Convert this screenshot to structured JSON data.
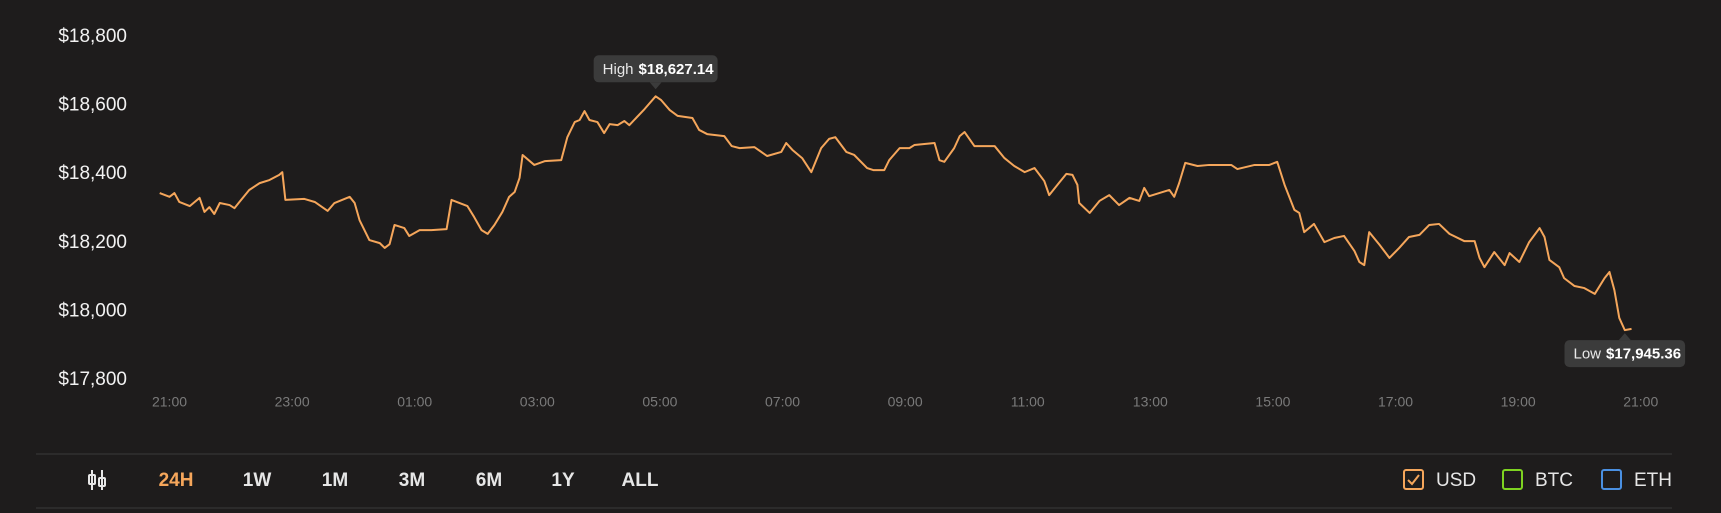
{
  "chart_data": {
    "type": "line",
    "color": "#f5a65b",
    "xlim": [
      -0.4,
      24.2
    ],
    "ylim": [
      17800,
      18800
    ],
    "xticks": [
      {
        "value": 0,
        "label": "21:00"
      },
      {
        "value": 2,
        "label": "23:00"
      },
      {
        "value": 4,
        "label": "01:00"
      },
      {
        "value": 6,
        "label": "03:00"
      },
      {
        "value": 8,
        "label": "05:00"
      },
      {
        "value": 10,
        "label": "07:00"
      },
      {
        "value": 12,
        "label": "09:00"
      },
      {
        "value": 14,
        "label": "11:00"
      },
      {
        "value": 16,
        "label": "13:00"
      },
      {
        "value": 18,
        "label": "15:00"
      },
      {
        "value": 20,
        "label": "17:00"
      },
      {
        "value": 22,
        "label": "19:00"
      },
      {
        "value": 24,
        "label": "21:00"
      }
    ],
    "yticks": [
      {
        "value": 18800,
        "label": "$18,800"
      },
      {
        "value": 18600,
        "label": "$18,600"
      },
      {
        "value": 18400,
        "label": "$18,400"
      },
      {
        "value": 18200,
        "label": "$18,200"
      },
      {
        "value": 18000,
        "label": "$18,000"
      },
      {
        "value": 17800,
        "label": "$17,800"
      }
    ],
    "x": [
      -0.16,
      0,
      0.08,
      0.16,
      0.33,
      0.49,
      0.57,
      0.65,
      0.73,
      0.82,
      0.98,
      1.06,
      1.14,
      1.3,
      1.47,
      1.63,
      1.79,
      1.84,
      1.89,
      2.2,
      2.37,
      2.58,
      2.69,
      2.94,
      3.02,
      3.1,
      3.26,
      3.43,
      3.51,
      3.59,
      3.67,
      3.83,
      3.91,
      4.08,
      4.27,
      4.52,
      4.6,
      4.86,
      4.97,
      5.09,
      5.19,
      5.3,
      5.43,
      5.54,
      5.63,
      5.71,
      5.76,
      5.95,
      6.12,
      6.39,
      6.49,
      6.61,
      6.69,
      6.77,
      6.85,
      6.98,
      7.09,
      7.18,
      7.31,
      7.42,
      7.5,
      7.75,
      7.93,
      8.02,
      8.16,
      8.29,
      8.53,
      8.64,
      8.77,
      9.05,
      9.17,
      9.3,
      9.54,
      9.75,
      9.98,
      10.06,
      10.16,
      10.32,
      10.47,
      10.63,
      10.76,
      10.86,
      11.04,
      11.17,
      11.38,
      11.48,
      11.66,
      11.74,
      11.91,
      12.07,
      12.15,
      12.48,
      12.56,
      12.64,
      12.8,
      12.89,
      12.97,
      13.13,
      13.46,
      13.62,
      13.78,
      13.95,
      14.11,
      14.27,
      14.35,
      14.52,
      14.63,
      14.73,
      14.81,
      14.84,
      15.01,
      15.17,
      15.33,
      15.49,
      15.66,
      15.82,
      15.9,
      15.98,
      16.31,
      16.39,
      16.47,
      16.57,
      16.77,
      16.96,
      17.32,
      17.42,
      17.7,
      17.94,
      18.07,
      18.19,
      18.35,
      18.43,
      18.51,
      18.67,
      18.84,
      19.0,
      19.16,
      19.33,
      19.41,
      19.49,
      19.57,
      19.74,
      19.9,
      20.06,
      20.22,
      20.39,
      20.55,
      20.71,
      20.88,
      21.12,
      21.29,
      21.37,
      21.45,
      21.61,
      21.78,
      21.86,
      22.02,
      22.18,
      22.35,
      22.43,
      22.51,
      22.67,
      22.75,
      22.92,
      23.08,
      23.25,
      23.41,
      23.49,
      23.57,
      23.65,
      23.74,
      23.85
    ],
    "values": [
      18345,
      18334,
      18345,
      18319,
      18307,
      18331,
      18290,
      18304,
      18284,
      18316,
      18310,
      18301,
      18319,
      18354,
      18374,
      18383,
      18398,
      18406,
      18325,
      18328,
      18319,
      18293,
      18316,
      18334,
      18316,
      18266,
      18208,
      18199,
      18185,
      18196,
      18252,
      18243,
      18220,
      18237,
      18237,
      18240,
      18325,
      18307,
      18275,
      18237,
      18226,
      18252,
      18290,
      18334,
      18348,
      18389,
      18456,
      18427,
      18438,
      18441,
      18508,
      18552,
      18558,
      18584,
      18558,
      18552,
      18520,
      18546,
      18543,
      18555,
      18543,
      18590,
      18627.14,
      18616,
      18587,
      18570,
      18564,
      18529,
      18517,
      18511,
      18482,
      18476,
      18479,
      18453,
      18465,
      18491,
      18471,
      18447,
      18406,
      18476,
      18503,
      18508,
      18465,
      18456,
      18418,
      18412,
      18412,
      18441,
      18476,
      18476,
      18485,
      18491,
      18441,
      18436,
      18476,
      18511,
      18523,
      18482,
      18482,
      18447,
      18424,
      18406,
      18418,
      18380,
      18339,
      18377,
      18401,
      18398,
      18369,
      18316,
      18287,
      18322,
      18339,
      18310,
      18331,
      18322,
      18360,
      18336,
      18354,
      18334,
      18374,
      18433,
      18424,
      18427,
      18427,
      18415,
      18427,
      18427,
      18436,
      18369,
      18296,
      18287,
      18231,
      18255,
      18202,
      18214,
      18220,
      18176,
      18144,
      18135,
      18231,
      18194,
      18156,
      18185,
      18217,
      18223,
      18252,
      18255,
      18226,
      18205,
      18205,
      18156,
      18129,
      18173,
      18135,
      18170,
      18144,
      18202,
      18243,
      18217,
      18150,
      18129,
      18097,
      18074,
      18068,
      18051,
      18097,
      18115,
      18062,
      17981,
      17945.36,
      17949
    ],
    "annotations": [
      {
        "text": "High",
        "x": 7.93,
        "value": 18627.14,
        "value_label": "$18,627.14"
      },
      {
        "text": "Low",
        "x": 23.74,
        "value": 17945.36,
        "value_label": "$17,945.36"
      }
    ]
  },
  "controls": {
    "ranges": [
      "24H",
      "1W",
      "1M",
      "3M",
      "6M",
      "1Y",
      "ALL"
    ],
    "active_range": 0,
    "active_color": "#f5a65b",
    "currencies": [
      {
        "name": "USD",
        "checked": true,
        "color": "#f5a65b"
      },
      {
        "name": "BTC",
        "checked": false,
        "color": "#7ed321"
      },
      {
        "name": "ETH",
        "checked": false,
        "color": "#4a90e2"
      }
    ]
  }
}
